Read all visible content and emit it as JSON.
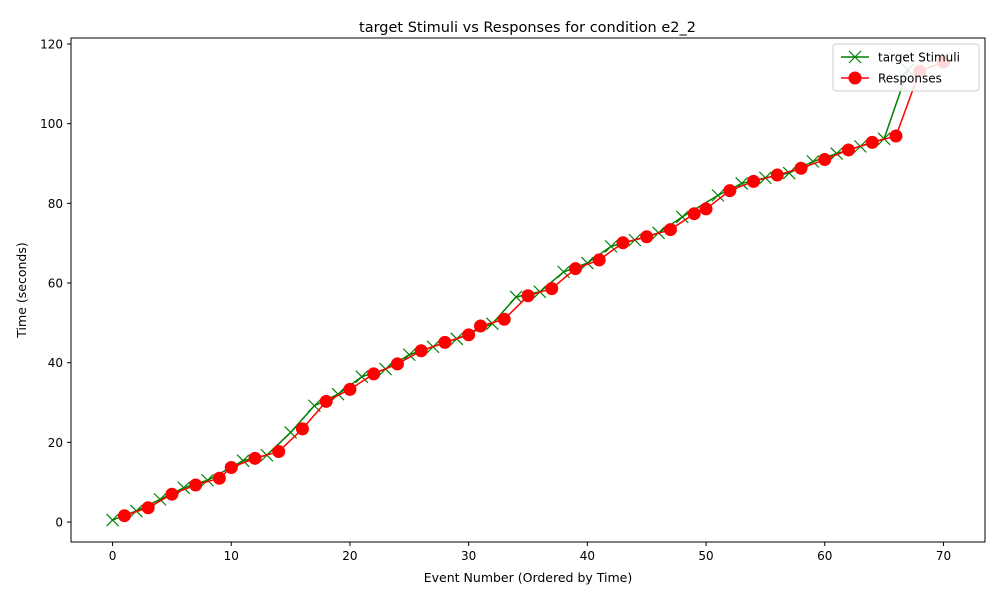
{
  "chart_data": {
    "type": "line",
    "title": "target Stimuli vs Responses for condition e2_2",
    "xlabel": "Event Number (Ordered by Time)",
    "ylabel": "Time (seconds)",
    "xlim": [
      -3.5,
      73.5
    ],
    "ylim": [
      -5,
      121.5
    ],
    "xticks": [
      0,
      10,
      20,
      30,
      40,
      50,
      60,
      70
    ],
    "yticks": [
      0,
      20,
      40,
      60,
      80,
      100,
      120
    ],
    "grid": false,
    "legend_position": "top-right",
    "series": [
      {
        "name": "target Stimuli",
        "color": "#008000",
        "marker": "x",
        "x": [
          0,
          2,
          4,
          6,
          8,
          11,
          13,
          15,
          17,
          19,
          21,
          23,
          25,
          27,
          29,
          32,
          34,
          36,
          38,
          40,
          42,
          44,
          46,
          48,
          51,
          53,
          55,
          57,
          59,
          61,
          63,
          65,
          67
        ],
        "y": [
          0.5,
          2.8,
          5.7,
          8.6,
          10.5,
          15.4,
          16.8,
          22.5,
          29.2,
          32.1,
          36.5,
          38.4,
          42.0,
          44.0,
          46.0,
          49.8,
          56.5,
          57.8,
          62.8,
          65.0,
          69.2,
          70.8,
          72.6,
          76.6,
          82.0,
          85.0,
          86.4,
          87.6,
          90.5,
          92.5,
          94.3,
          96.2,
          113.5
        ]
      },
      {
        "name": "Responses",
        "color": "#ff0000",
        "marker": "o",
        "x": [
          1,
          3,
          5,
          7,
          9,
          10,
          12,
          14,
          16,
          18,
          20,
          22,
          24,
          26,
          28,
          30,
          31,
          33,
          35,
          37,
          39,
          41,
          43,
          45,
          47,
          49,
          50,
          52,
          54,
          56,
          58,
          60,
          62,
          64,
          66,
          68,
          70
        ],
        "y": [
          1.6,
          3.6,
          7.0,
          9.3,
          11.0,
          13.7,
          16.0,
          17.7,
          23.4,
          30.3,
          33.3,
          37.2,
          39.7,
          43.0,
          45.1,
          47.0,
          49.2,
          50.9,
          56.8,
          58.6,
          63.6,
          65.8,
          70.1,
          71.6,
          73.4,
          77.4,
          78.6,
          83.2,
          85.5,
          87.1,
          88.8,
          91.0,
          93.4,
          95.3,
          96.9,
          113.2,
          115.5
        ]
      }
    ]
  }
}
